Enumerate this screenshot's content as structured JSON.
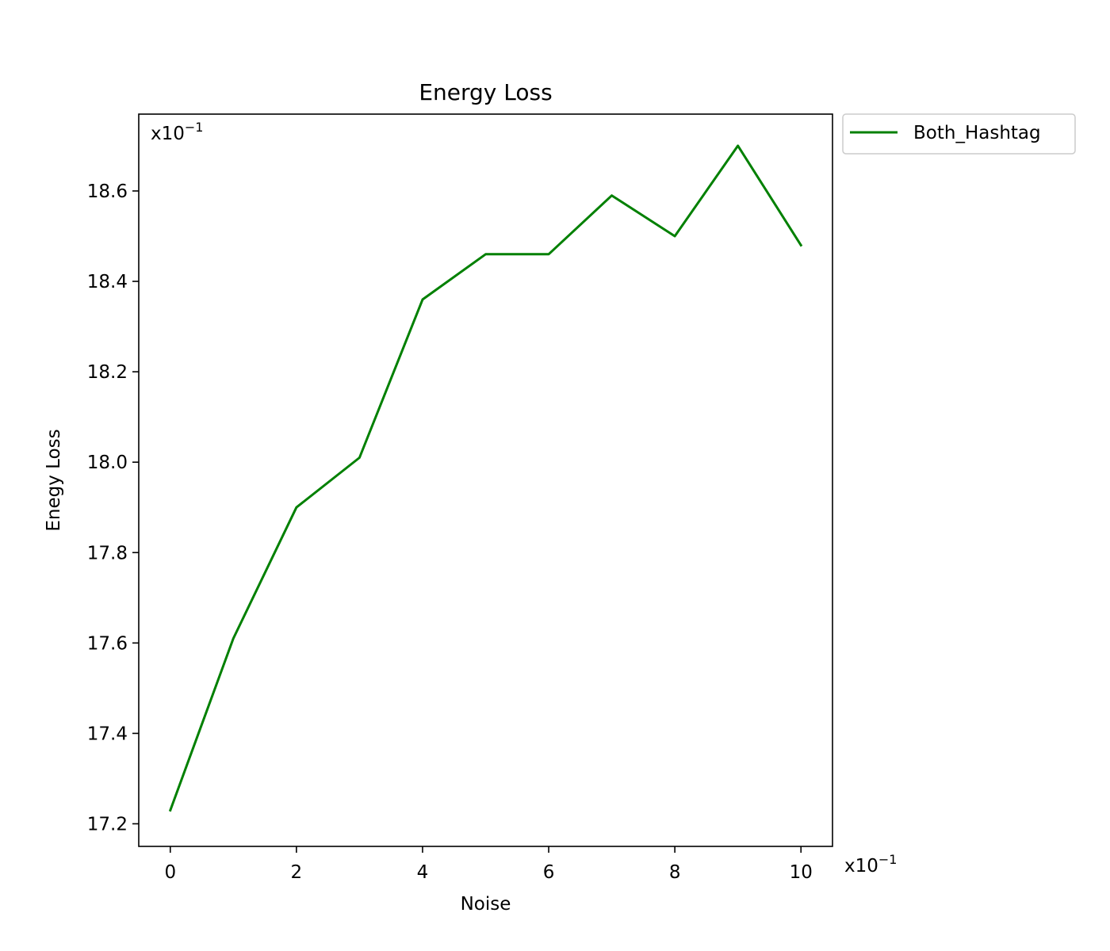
{
  "chart_data": {
    "type": "line",
    "title": "Energy Loss",
    "xlabel": "Noise",
    "ylabel": "Enegy Loss",
    "x_multiplier": {
      "base": "x10",
      "exponent": "−1"
    },
    "y_multiplier": {
      "base": "x10",
      "exponent": "−1"
    },
    "xlim": [
      -0.5,
      10.5
    ],
    "ylim": [
      17.15,
      18.77
    ],
    "x_ticks": [
      0,
      2,
      4,
      6,
      8,
      10
    ],
    "x_tick_labels": [
      "0",
      "2",
      "4",
      "6",
      "8",
      "10"
    ],
    "y_ticks": [
      17.2,
      17.4,
      17.6,
      17.8,
      18.0,
      18.2,
      18.4,
      18.6
    ],
    "y_tick_labels": [
      "17.2",
      "17.4",
      "17.6",
      "17.8",
      "18.0",
      "18.2",
      "18.4",
      "18.6"
    ],
    "grid": false,
    "legend_position": "outside-top-right",
    "series": [
      {
        "name": "Both_Hashtag",
        "color": "#008000",
        "x": [
          0,
          1,
          2,
          3,
          4,
          5,
          6,
          7,
          8,
          9,
          10
        ],
        "y": [
          17.23,
          17.61,
          17.9,
          18.01,
          18.36,
          18.46,
          18.46,
          18.59,
          18.5,
          18.7,
          18.48
        ]
      }
    ]
  }
}
